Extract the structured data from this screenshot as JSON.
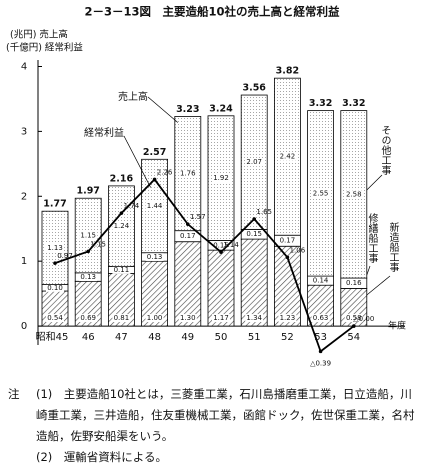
{
  "chart_data": {
    "type": "bar",
    "title": "2－3－13図　主要造船10社の売上高と経常利益",
    "ylabel": "(兆円) 売上高",
    "ylabel_profit": "(千億円) 経常利益",
    "xlabel": "年度",
    "categories": [
      "昭和45",
      "46",
      "47",
      "48",
      "49",
      "50",
      "51",
      "52",
      "53",
      "54"
    ],
    "ylim": [
      -0.6,
      4.1
    ],
    "yticks": [
      0,
      1,
      2,
      3,
      4
    ],
    "grid": false,
    "stacked": true,
    "series": [
      {
        "name": "新造船工事",
        "color": "#444444",
        "pattern": "hatch",
        "values": [
          0.54,
          0.69,
          0.81,
          1.0,
          1.3,
          1.17,
          1.34,
          1.23,
          0.63,
          0.58
        ],
        "value_labels": [
          "0.54",
          "0.69",
          "0.81",
          "1.00",
          "1.30",
          "1.17",
          "1.34",
          "1.23",
          "0.63",
          "0.58"
        ]
      },
      {
        "name": "修繕船工事",
        "color": "#ffffff",
        "pattern": "solid",
        "values": [
          0.1,
          0.13,
          0.11,
          0.13,
          0.17,
          0.15,
          0.15,
          0.17,
          0.14,
          0.16
        ],
        "value_labels": [
          "0.10",
          "0.13",
          "0.11",
          "0.13",
          "0.17",
          "0.15",
          "0.15",
          "0.17",
          "0.14",
          "0.16"
        ]
      },
      {
        "name": "その他工事",
        "color": "#888888",
        "pattern": "dots",
        "values": [
          1.13,
          1.15,
          1.24,
          1.44,
          1.76,
          1.92,
          2.07,
          2.42,
          2.55,
          2.58
        ],
        "value_labels": [
          "1.13",
          "1.15",
          "1.24",
          "1.44",
          "1.76",
          "1.92",
          "2.07",
          "2.42",
          "2.55",
          "2.58"
        ]
      },
      {
        "name": "経常利益",
        "type": "line",
        "color": "#000000",
        "values": [
          0.97,
          1.15,
          1.74,
          2.26,
          1.57,
          1.14,
          1.65,
          1.06,
          -0.39,
          0.0
        ],
        "value_labels": [
          "0.97",
          "1.15",
          "1.74",
          "2.26",
          "1.57",
          "1.14",
          "1.65",
          "1.06",
          "△0.39",
          "△0.00"
        ]
      }
    ],
    "totals": [
      1.77,
      1.97,
      2.16,
      2.57,
      3.23,
      3.24,
      3.56,
      3.82,
      3.32,
      3.32
    ],
    "total_label": "売上高",
    "notes_label": "注",
    "notes": [
      "(1)　主要造船10社とは，三菱重工業，石川島播磨重工業，日立造船，川崎重工業，三井造船，住友重機械工業，函館ドック，佐世保重工業，名村造船，佐野安船渠をいう。",
      "(2)　運輸省資料による。"
    ]
  }
}
